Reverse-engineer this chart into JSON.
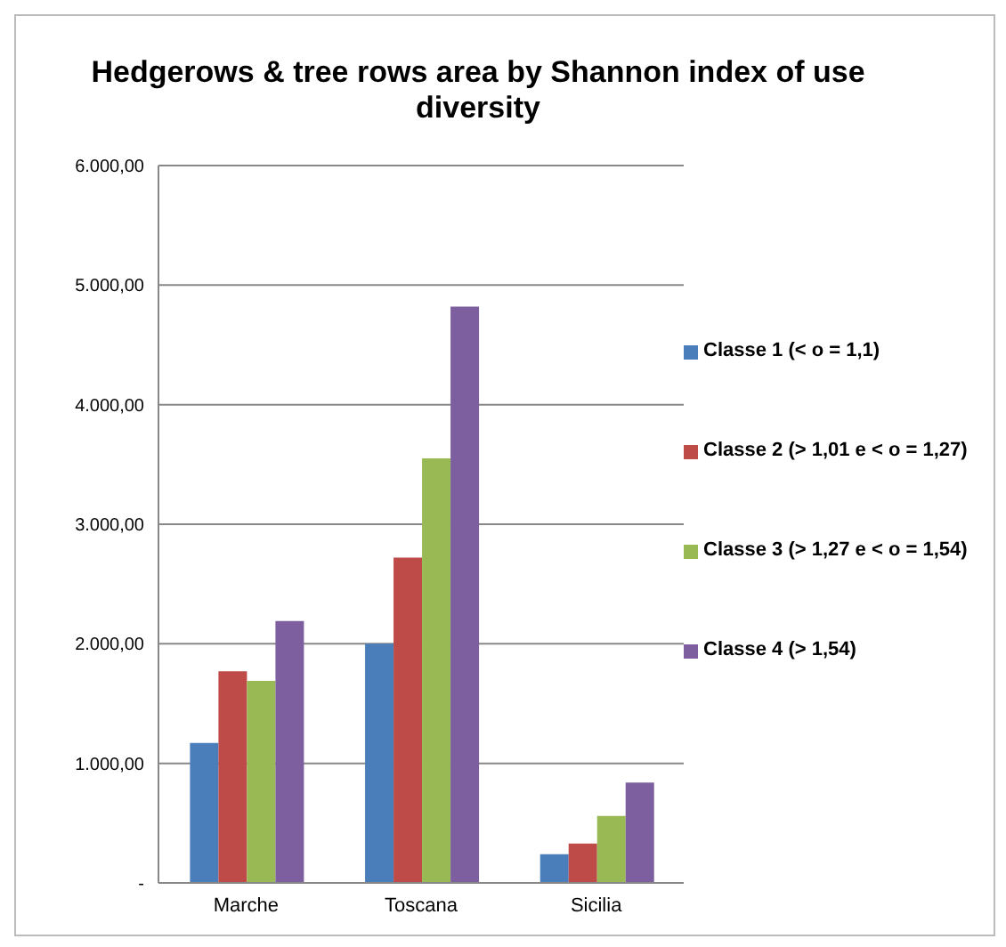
{
  "chart_data": {
    "type": "bar",
    "title": "Hedgerows & tree rows area by Shannon index of use diversity",
    "categories": [
      "Marche",
      "Toscana",
      "Sicilia"
    ],
    "series": [
      {
        "name": "Classe 1 (<  o = 1,1)",
        "color": "#4a7ebb",
        "values": [
          1170,
          2000,
          240
        ]
      },
      {
        "name": "Classe 2 (> 1,01 e < o = 1,27)",
        "color": "#be4b48",
        "values": [
          1770,
          2720,
          330
        ]
      },
      {
        "name": "Classe 3  (> 1,27 e <  o = 1,54)",
        "color": "#98b954",
        "values": [
          1690,
          3550,
          560
        ]
      },
      {
        "name": "Classe 4  (> 1,54)",
        "color": "#7d5fa0",
        "values": [
          2190,
          4820,
          840
        ]
      }
    ],
    "ylim": [
      0,
      6000
    ],
    "yticks": [
      {
        "value": 0,
        "label": "-"
      },
      {
        "value": 1000,
        "label": "1.000,00"
      },
      {
        "value": 2000,
        "label": "2.000,00"
      },
      {
        "value": 3000,
        "label": "3.000,00"
      },
      {
        "value": 4000,
        "label": "4.000,00"
      },
      {
        "value": 5000,
        "label": "5.000,00"
      },
      {
        "value": 6000,
        "label": "6.000,00"
      }
    ],
    "grid": "y",
    "legend": "right"
  }
}
